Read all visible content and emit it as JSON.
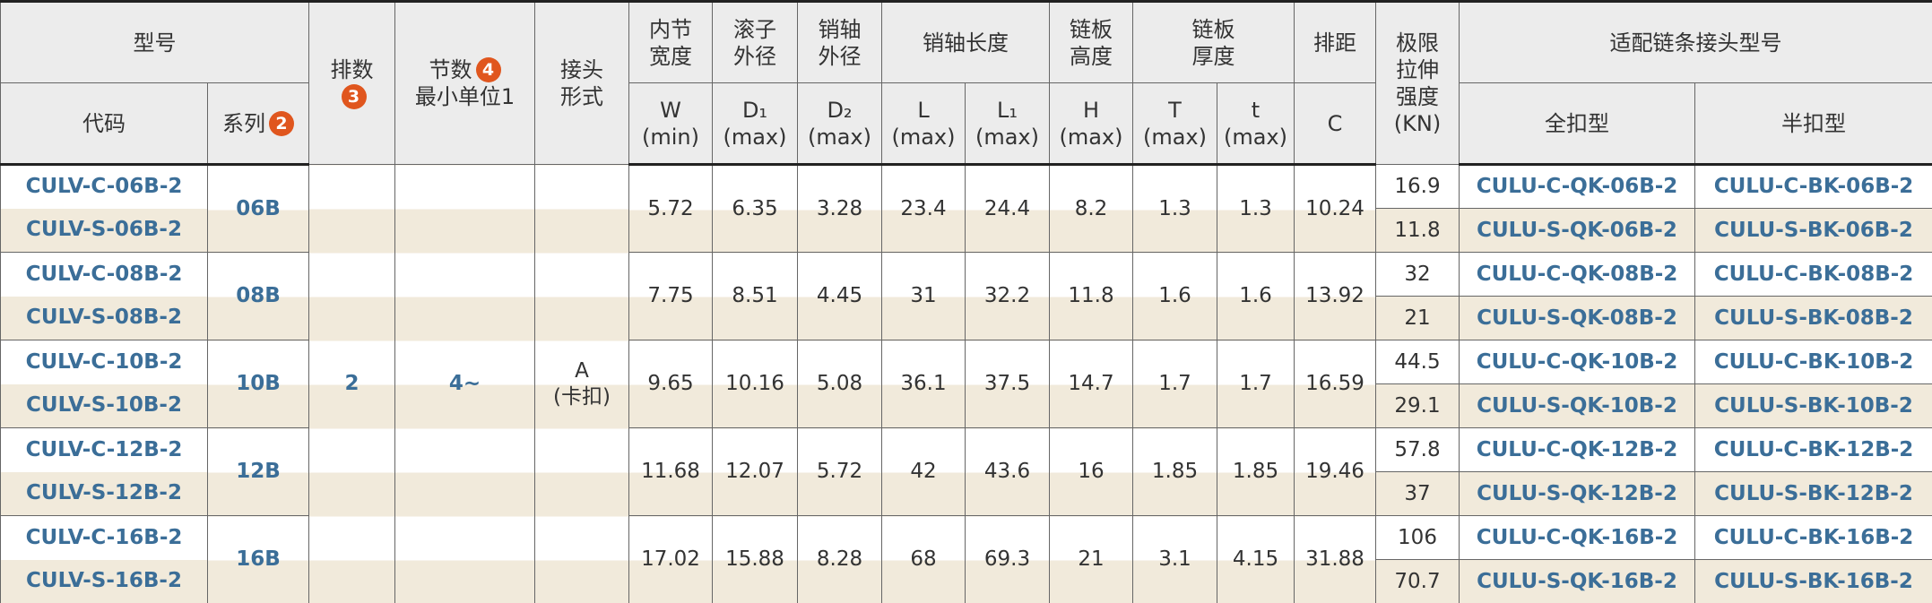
{
  "header": {
    "model": "型号",
    "code": "代码",
    "series": "系列",
    "series_badge": "2",
    "rows": "排数",
    "rows_badge": "3",
    "pitch": "节数",
    "pitch_badge": "4",
    "pitch_sub": "最小单位1",
    "joint": "接头\n形式",
    "dim_groups": [
      {
        "name": "内节\n宽度",
        "cols": [
          {
            "symbol": "W",
            "limit": "(min)"
          }
        ]
      },
      {
        "name": "滚子\n外径",
        "cols": [
          {
            "symbol": "D₁",
            "limit": "(max)"
          }
        ]
      },
      {
        "name": "销轴\n外径",
        "cols": [
          {
            "symbol": "D₂",
            "limit": "(max)"
          }
        ]
      },
      {
        "name": "销轴长度",
        "cols": [
          {
            "symbol": "L",
            "limit": "(max)"
          },
          {
            "symbol": "L₁",
            "limit": "(max)"
          }
        ]
      },
      {
        "name": "链板\n高度",
        "cols": [
          {
            "symbol": "H",
            "limit": "(max)"
          }
        ]
      },
      {
        "name": "链板\n厚度",
        "cols": [
          {
            "symbol": "T",
            "limit": "(max)"
          },
          {
            "symbol": "t",
            "limit": "(max)"
          }
        ]
      },
      {
        "name": "排距",
        "cols": [
          {
            "symbol": "C"
          }
        ]
      }
    ],
    "strength": "极限\n拉伸\n强度\n(KN)",
    "adapter": "适配链条接头型号",
    "full": "全扣型",
    "half": "半扣型"
  },
  "shared": {
    "rows": "2",
    "pitch": "4~",
    "joint": "A\n(卡扣)"
  },
  "groups": [
    {
      "series": "06B",
      "dims": [
        5.72,
        6.35,
        3.28,
        23.4,
        24.4,
        8.2,
        1.3,
        1.3,
        10.24
      ],
      "items": [
        {
          "code": "CULV-C-06B-2",
          "strength": 16.9,
          "full": "CULU-C-QK-06B-2",
          "half": "CULU-C-BK-06B-2"
        },
        {
          "code": "CULV-S-06B-2",
          "strength": 11.8,
          "full": "CULU-S-QK-06B-2",
          "half": "CULU-S-BK-06B-2"
        }
      ]
    },
    {
      "series": "08B",
      "dims": [
        7.75,
        8.51,
        4.45,
        31,
        32.2,
        11.8,
        1.6,
        1.6,
        13.92
      ],
      "items": [
        {
          "code": "CULV-C-08B-2",
          "strength": 32,
          "full": "CULU-C-QK-08B-2",
          "half": "CULU-C-BK-08B-2"
        },
        {
          "code": "CULV-S-08B-2",
          "strength": 21,
          "full": "CULU-S-QK-08B-2",
          "half": "CULU-S-BK-08B-2"
        }
      ]
    },
    {
      "series": "10B",
      "dims": [
        9.65,
        10.16,
        5.08,
        36.1,
        37.5,
        14.7,
        1.7,
        1.7,
        16.59
      ],
      "items": [
        {
          "code": "CULV-C-10B-2",
          "strength": 44.5,
          "full": "CULU-C-QK-10B-2",
          "half": "CULU-C-BK-10B-2"
        },
        {
          "code": "CULV-S-10B-2",
          "strength": 29.1,
          "full": "CULU-S-QK-10B-2",
          "half": "CULU-S-BK-10B-2"
        }
      ]
    },
    {
      "series": "12B",
      "dims": [
        11.68,
        12.07,
        5.72,
        42,
        43.6,
        16,
        1.85,
        1.85,
        19.46
      ],
      "items": [
        {
          "code": "CULV-C-12B-2",
          "strength": 57.8,
          "full": "CULU-C-QK-12B-2",
          "half": "CULU-C-BK-12B-2"
        },
        {
          "code": "CULV-S-12B-2",
          "strength": 37,
          "full": "CULU-S-QK-12B-2",
          "half": "CULU-S-BK-12B-2"
        }
      ]
    },
    {
      "series": "16B",
      "dims": [
        17.02,
        15.88,
        8.28,
        68,
        69.3,
        21,
        3.1,
        4.15,
        31.88
      ],
      "items": [
        {
          "code": "CULV-C-16B-2",
          "strength": 106,
          "full": "CULU-C-QK-16B-2",
          "half": "CULU-C-BK-16B-2"
        },
        {
          "code": "CULV-S-16B-2",
          "strength": 70.7,
          "full": "CULU-S-QK-16B-2",
          "half": "CULU-S-BK-16B-2"
        }
      ]
    }
  ]
}
